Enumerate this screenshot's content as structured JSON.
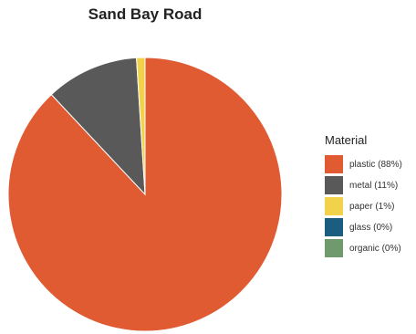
{
  "chart_data": {
    "type": "pie",
    "title": "Sand Bay Road",
    "legend_title": "Material",
    "legend_position": "right",
    "slices": [
      {
        "label": "plastic",
        "legend_label": "plastic (88%)",
        "value": 88,
        "color": "#e05a32"
      },
      {
        "label": "metal",
        "legend_label": "metal (11%)",
        "value": 11,
        "color": "#595959"
      },
      {
        "label": "paper",
        "legend_label": "paper (1%)",
        "value": 1,
        "color": "#f2d24a"
      },
      {
        "label": "glass",
        "legend_label": "glass (0%)",
        "value": 0,
        "color": "#1a5d80"
      },
      {
        "label": "organic",
        "legend_label": "organic (0%)",
        "value": 0,
        "color": "#6f9a6e"
      }
    ]
  }
}
